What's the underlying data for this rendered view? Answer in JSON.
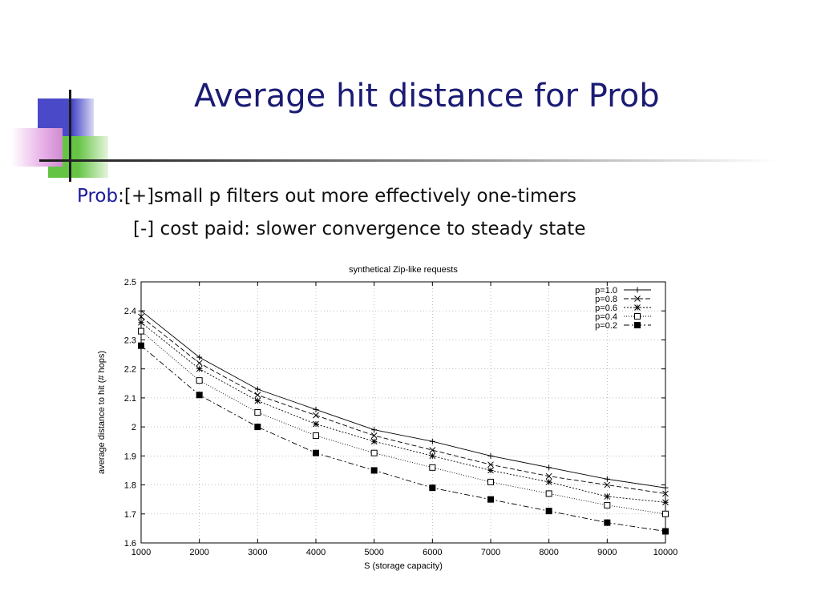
{
  "slide": {
    "title": "Average hit distance for Prob",
    "bullet1_keyword": "Prob",
    "bullet1_text": ":[+]small p filters out more effectively one-timers",
    "bullet2_text": "[-] cost paid: slower convergence to steady state"
  },
  "colors": {
    "title": "#1b1b74",
    "keyword": "#1b1b9a",
    "deco_blue": "#4a4ac8",
    "deco_green": "#66c445",
    "deco_pink": "#e8b2e8"
  },
  "chart_data": {
    "type": "line",
    "title": "synthetical Zip-like requests",
    "xlabel": "S (storage capacity)",
    "ylabel": "average distance to hit (# hops)",
    "xlim": [
      1000,
      10000
    ],
    "ylim": [
      1.6,
      2.5
    ],
    "xticks": [
      1000,
      2000,
      3000,
      4000,
      5000,
      6000,
      7000,
      8000,
      9000,
      10000
    ],
    "yticks": [
      1.6,
      1.7,
      1.8,
      1.9,
      2,
      2.1,
      2.2,
      2.3,
      2.4,
      2.5
    ],
    "grid": true,
    "legend_position": "top-right",
    "x": [
      1000,
      2000,
      3000,
      4000,
      5000,
      6000,
      7000,
      8000,
      9000,
      10000
    ],
    "series": [
      {
        "name": "p=1.0",
        "marker": "plus",
        "dash": "",
        "values": [
          2.4,
          2.24,
          2.13,
          2.06,
          1.99,
          1.95,
          1.9,
          1.86,
          1.82,
          1.79
        ]
      },
      {
        "name": "p=0.8",
        "marker": "x",
        "dash": "6 3",
        "values": [
          2.38,
          2.22,
          2.11,
          2.04,
          1.97,
          1.92,
          1.87,
          1.83,
          1.8,
          1.77
        ]
      },
      {
        "name": "p=0.6",
        "marker": "star",
        "dash": "2 2",
        "values": [
          2.36,
          2.2,
          2.09,
          2.01,
          1.95,
          1.9,
          1.85,
          1.81,
          1.76,
          1.74
        ]
      },
      {
        "name": "p=0.4",
        "marker": "square-open",
        "dash": "1 2",
        "values": [
          2.33,
          2.16,
          2.05,
          1.97,
          1.91,
          1.86,
          1.81,
          1.77,
          1.73,
          1.7
        ]
      },
      {
        "name": "p=0.2",
        "marker": "square-filled",
        "dash": "7 3 2 3",
        "values": [
          2.28,
          2.11,
          2.0,
          1.91,
          1.85,
          1.79,
          1.75,
          1.71,
          1.67,
          1.64
        ]
      }
    ]
  }
}
